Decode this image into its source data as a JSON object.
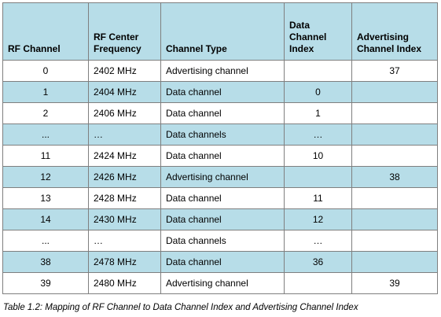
{
  "table": {
    "headers": {
      "rf_channel": "RF Channel",
      "rf_center_frequency": "RF Center Frequency",
      "channel_type": "Channel Type",
      "data_channel_index": "Data Channel Index",
      "advertising_channel_index": "Advertising Channel Index"
    },
    "rows": [
      {
        "rf_channel": "0",
        "frequency": "2402 MHz",
        "type": "Advertising channel",
        "data_index": "",
        "adv_index": "37"
      },
      {
        "rf_channel": "1",
        "frequency": "2404 MHz",
        "type": "Data channel",
        "data_index": "0",
        "adv_index": ""
      },
      {
        "rf_channel": "2",
        "frequency": "2406 MHz",
        "type": "Data channel",
        "data_index": "1",
        "adv_index": ""
      },
      {
        "rf_channel": "...",
        "frequency": "…",
        "type": "Data channels",
        "data_index": "…",
        "adv_index": ""
      },
      {
        "rf_channel": "11",
        "frequency": "2424 MHz",
        "type": "Data channel",
        "data_index": "10",
        "adv_index": ""
      },
      {
        "rf_channel": "12",
        "frequency": "2426 MHz",
        "type": "Advertising channel",
        "data_index": "",
        "adv_index": "38"
      },
      {
        "rf_channel": "13",
        "frequency": "2428 MHz",
        "type": "Data channel",
        "data_index": "11",
        "adv_index": ""
      },
      {
        "rf_channel": "14",
        "frequency": "2430 MHz",
        "type": "Data channel",
        "data_index": "12",
        "adv_index": ""
      },
      {
        "rf_channel": "...",
        "frequency": "…",
        "type": "Data channels",
        "data_index": "…",
        "adv_index": ""
      },
      {
        "rf_channel": "38",
        "frequency": "2478 MHz",
        "type": "Data channel",
        "data_index": "36",
        "adv_index": ""
      },
      {
        "rf_channel": "39",
        "frequency": "2480 MHz",
        "type": "Advertising channel",
        "data_index": "",
        "adv_index": "39"
      }
    ]
  },
  "caption": "Table 1.2: Mapping of RF Channel to Data Channel Index and Advertising Channel Index",
  "colors": {
    "header_band": "#b7dde8",
    "border": "#7f7f7f"
  }
}
